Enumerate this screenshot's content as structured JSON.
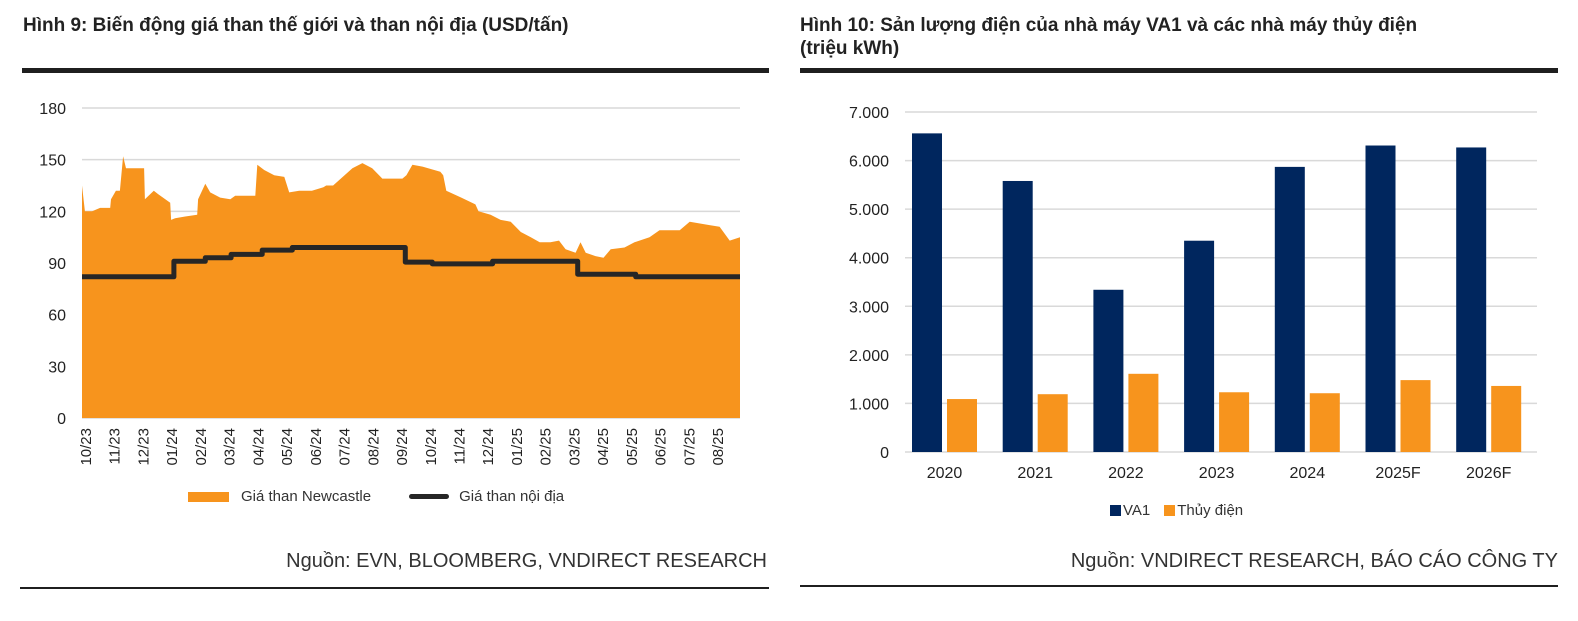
{
  "figure9": {
    "title": "Hình 9: Biến động giá than thế giới và than nội địa (USD/tấn)",
    "source": "Nguồn: EVN, BLOOMBERG, VNDIRECT RESEARCH"
  },
  "figure10": {
    "title_line1": "Hình 10:  Sản lượng điện của nhà máy VA1 và các nhà máy thủy điện",
    "title_line2": "(triệu kWh)",
    "source": "Nguồn: VNDIRECT RESEARCH, BÁO CÁO CÔNG TY"
  },
  "chart_data": [
    {
      "type": "area",
      "title": "Hình 9: Biến động giá than thế giới và than nội địa (USD/tấn)",
      "xlabel": "",
      "ylabel": "",
      "x_unit": "months since 10/23",
      "xlim": [
        0,
        22.9
      ],
      "ylim": [
        0,
        180
      ],
      "yticks": [
        0,
        30,
        60,
        90,
        120,
        150,
        180
      ],
      "ytick_labels": [
        "0",
        "30",
        "60",
        "90",
        "120",
        "150",
        "180"
      ],
      "xtick_labels": [
        "10/23",
        "11/23",
        "12/23",
        "01/24",
        "02/24",
        "03/24",
        "04/24",
        "05/24",
        "06/24",
        "07/24",
        "08/24",
        "09/24",
        "10/24",
        "11/24",
        "12/24",
        "01/25",
        "02/25",
        "03/25",
        "04/25",
        "05/25",
        "06/25",
        "07/25",
        "08/25"
      ],
      "grid": true,
      "legend_position": "bottom",
      "colors": {
        "newcastle": "#F7941D",
        "domestic": "#262626",
        "grid": "#d9d9d9"
      },
      "series": [
        {
          "name": "Giá than Newcastle",
          "kind": "area",
          "x": [
            0,
            0.1,
            0.35,
            0.63,
            0.98,
            1.01,
            1.18,
            1.32,
            1.43,
            1.53,
            1.74,
            2.16,
            2.19,
            2.5,
            2.65,
            3.07,
            3.1,
            3.24,
            3.59,
            4.01,
            4.04,
            4.29,
            4.46,
            4.81,
            5.16,
            5.33,
            6.03,
            6.1,
            6.34,
            6.69,
            7.04,
            7.21,
            7.56,
            8.0,
            8.4,
            8.5,
            8.74,
            9.41,
            9.76,
            10.1,
            10.45,
            10.8,
            11.15,
            11.29,
            11.5,
            11.85,
            12.47,
            12.57,
            12.68,
            13.2,
            13.69,
            13.8,
            14.22,
            14.57,
            14.92,
            15.27,
            15.62,
            15.93,
            16.3,
            16.6,
            16.83,
            17.18,
            17.35,
            17.53,
            17.87,
            18.15,
            18.4,
            18.88,
            19.23,
            19.75,
            20.1,
            20.8,
            21.15,
            21.84,
            22.19,
            22.54,
            22.9
          ],
          "values": [
            135,
            120,
            120,
            122,
            122,
            127,
            132,
            132,
            152,
            145,
            145,
            145,
            127,
            132,
            130,
            125,
            115,
            116,
            117,
            118,
            127,
            136,
            131,
            128,
            127,
            129,
            129,
            147,
            144,
            141,
            140,
            131,
            132,
            132,
            134,
            135,
            135,
            145,
            148,
            145,
            139,
            139,
            139,
            141,
            147,
            146,
            143,
            141,
            132,
            128,
            124,
            120,
            118,
            115,
            114,
            108,
            105,
            102,
            102,
            103,
            98,
            96,
            102,
            96,
            94,
            93,
            98,
            99,
            102,
            105,
            109,
            109,
            114,
            112,
            111,
            103,
            105
          ]
        },
        {
          "name": "Giá than nội địa",
          "kind": "step-line",
          "x": [
            0,
            3.2,
            3.2,
            4.29,
            4.29,
            5.19,
            5.19,
            6.27,
            6.27,
            7.32,
            7.32,
            11.25,
            11.25,
            12.19,
            12.19,
            14.29,
            14.29,
            17.25,
            17.25,
            19.27,
            19.27,
            22.9
          ],
          "values": [
            82,
            82,
            91,
            91,
            93,
            93,
            95,
            95,
            97.5,
            97.5,
            99,
            99,
            90.5,
            90.5,
            89.5,
            89.5,
            91,
            91,
            83.5,
            83.5,
            82,
            82
          ]
        }
      ]
    },
    {
      "type": "bar",
      "title": "Hình 10:  Sản lượng điện của nhà máy VA1 và các nhà máy thủy điện (triệu kWh)",
      "xlabel": "",
      "ylabel": "",
      "categories": [
        "2020",
        "2021",
        "2022",
        "2023",
        "2024",
        "2025F",
        "2026F"
      ],
      "ylim": [
        0,
        7000
      ],
      "yticks": [
        0,
        1000,
        2000,
        3000,
        4000,
        5000,
        6000,
        7000
      ],
      "ytick_labels": [
        "0",
        "1.000",
        "2.000",
        "3.000",
        "4.000",
        "5.000",
        "6.000",
        "7.000"
      ],
      "grid": true,
      "legend_position": "bottom",
      "colors": {
        "VA1": "#00265E",
        "Thủy điện": "#F7941D",
        "grid": "#d9d9d9"
      },
      "series": [
        {
          "name": "VA1",
          "values": [
            6560,
            5580,
            3340,
            4350,
            5870,
            6310,
            6270
          ]
        },
        {
          "name": "Thủy điện",
          "values": [
            1090,
            1190,
            1610,
            1230,
            1210,
            1480,
            1360
          ]
        }
      ]
    }
  ]
}
